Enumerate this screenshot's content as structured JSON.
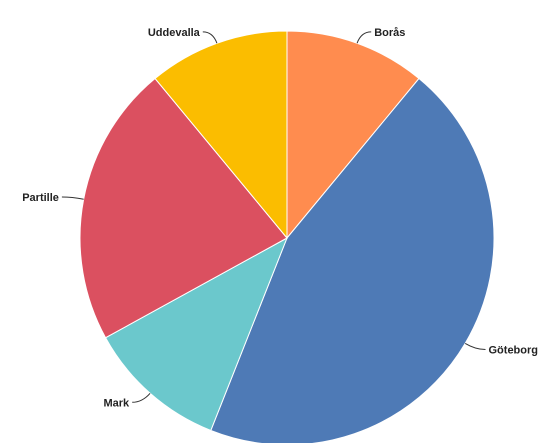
{
  "chart_data": {
    "type": "pie",
    "title": "",
    "slices": [
      {
        "label": "Borås",
        "value": 11,
        "color": "#FF8C4F"
      },
      {
        "label": "Göteborg",
        "value": 45,
        "color": "#4E7AB6"
      },
      {
        "label": "Mark",
        "value": 11,
        "color": "#6BC8CC"
      },
      {
        "label": "Partille",
        "value": 22,
        "color": "#DB5060"
      },
      {
        "label": "Uddevalla",
        "value": 11,
        "color": "#FBBD00"
      }
    ],
    "legend": "none",
    "labels": "outside with leader lines"
  }
}
